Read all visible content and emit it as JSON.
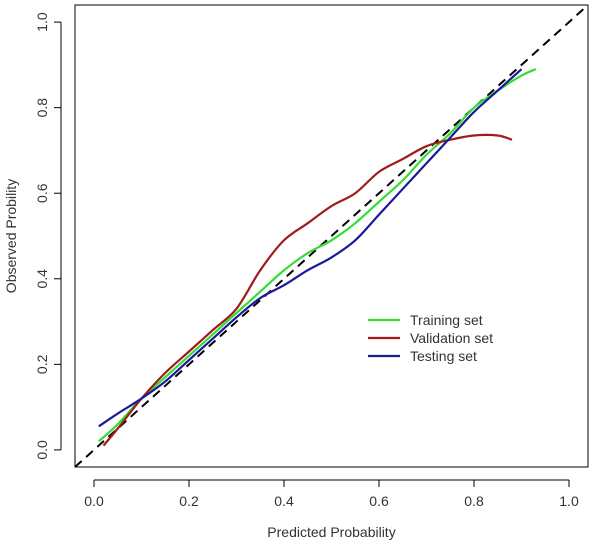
{
  "chart_data": {
    "type": "line",
    "title": "",
    "xlabel": "Predicted Probability",
    "ylabel": "Observed Probility",
    "xlim": [
      -0.04,
      1.04
    ],
    "ylim": [
      -0.04,
      1.04
    ],
    "xticks": [
      "0.0",
      "0.2",
      "0.4",
      "0.6",
      "0.8",
      "1.0"
    ],
    "yticks": [
      "0.0",
      "0.2",
      "0.4",
      "0.6",
      "0.8",
      "1.0"
    ],
    "xtick_values": [
      0,
      0.2,
      0.4,
      0.6,
      0.8,
      1.0
    ],
    "ytick_values": [
      0,
      0.2,
      0.4,
      0.6,
      0.8,
      1.0
    ],
    "grid": false,
    "legend_position": "right-center",
    "reference_line": {
      "x": [
        -0.04,
        1.04
      ],
      "y": [
        -0.04,
        1.04
      ],
      "color": "#000000",
      "style": "dashed"
    },
    "series": [
      {
        "name": "Training set",
        "color": "#33dd33",
        "x": [
          0.01,
          0.05,
          0.1,
          0.15,
          0.2,
          0.25,
          0.3,
          0.35,
          0.4,
          0.45,
          0.5,
          0.55,
          0.6,
          0.65,
          0.7,
          0.75,
          0.8,
          0.85,
          0.9,
          0.93
        ],
        "y": [
          0.02,
          0.06,
          0.12,
          0.17,
          0.22,
          0.27,
          0.32,
          0.37,
          0.42,
          0.46,
          0.49,
          0.53,
          0.58,
          0.63,
          0.69,
          0.74,
          0.8,
          0.84,
          0.875,
          0.89
        ]
      },
      {
        "name": "Validation set",
        "color": "#a01c1c",
        "x": [
          0.02,
          0.05,
          0.1,
          0.15,
          0.2,
          0.25,
          0.3,
          0.35,
          0.4,
          0.45,
          0.5,
          0.55,
          0.6,
          0.65,
          0.7,
          0.75,
          0.8,
          0.85,
          0.88
        ],
        "y": [
          0.01,
          0.05,
          0.12,
          0.18,
          0.23,
          0.28,
          0.33,
          0.42,
          0.49,
          0.53,
          0.57,
          0.6,
          0.65,
          0.68,
          0.71,
          0.725,
          0.735,
          0.735,
          0.725
        ]
      },
      {
        "name": "Testing set",
        "color": "#1a1a99",
        "x": [
          0.01,
          0.05,
          0.1,
          0.15,
          0.2,
          0.25,
          0.3,
          0.35,
          0.4,
          0.45,
          0.5,
          0.55,
          0.6,
          0.65,
          0.7,
          0.75,
          0.8,
          0.85,
          0.9
        ],
        "y": [
          0.055,
          0.085,
          0.12,
          0.16,
          0.21,
          0.26,
          0.31,
          0.355,
          0.385,
          0.42,
          0.45,
          0.49,
          0.55,
          0.61,
          0.67,
          0.73,
          0.79,
          0.84,
          0.89
        ]
      }
    ]
  }
}
